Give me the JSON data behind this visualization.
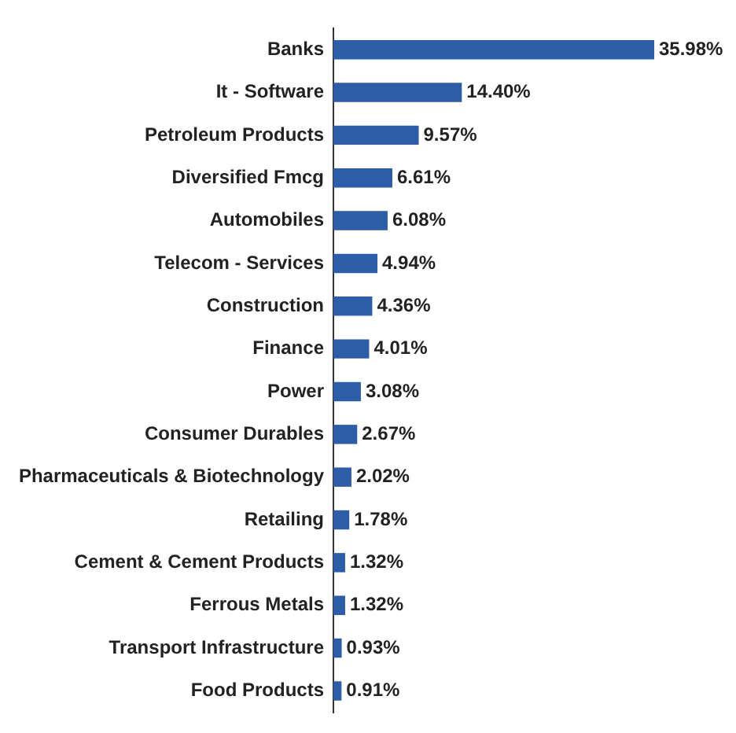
{
  "chart_data": {
    "type": "bar",
    "orientation": "horizontal",
    "data_labels": true,
    "color": "#2e5da8",
    "categories": [
      "Banks",
      "It - Software",
      "Petroleum Products",
      "Diversified Fmcg",
      "Automobiles",
      "Telecom - Services",
      "Construction",
      "Finance",
      "Power",
      "Consumer Durables",
      "Pharmaceuticals & Biotechnology",
      "Retailing",
      "Cement & Cement Products",
      "Ferrous Metals",
      "Transport Infrastructure",
      "Food Products"
    ],
    "values": [
      35.98,
      14.4,
      9.57,
      6.61,
      6.08,
      4.94,
      4.36,
      4.01,
      3.08,
      2.67,
      2.02,
      1.78,
      1.32,
      1.32,
      0.93,
      0.91
    ],
    "value_labels": [
      "35.98%",
      "14.40%",
      "9.57%",
      "6.61%",
      "6.08%",
      "4.94%",
      "4.36%",
      "4.01%",
      "3.08%",
      "2.67%",
      "2.02%",
      "1.78%",
      "1.32%",
      "1.32%",
      "0.93%",
      "0.91%"
    ]
  }
}
